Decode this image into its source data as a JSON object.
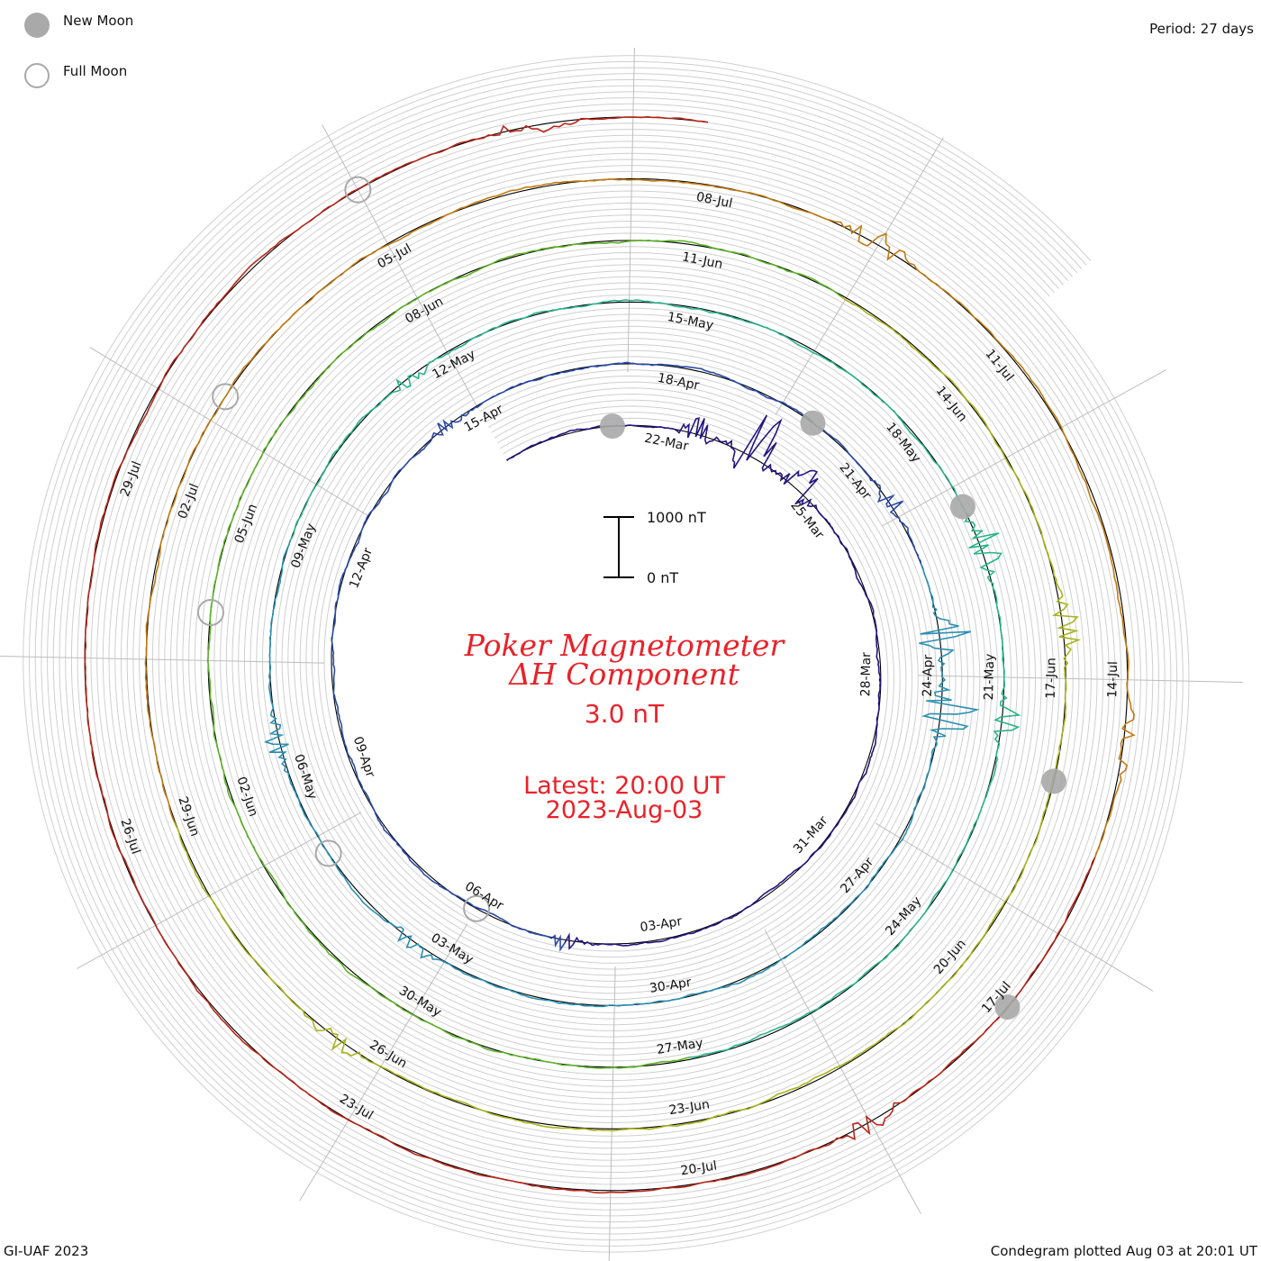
{
  "legend": {
    "new_moon": {
      "label": "New Moon",
      "color": "#a9a9a9"
    },
    "full_moon": {
      "label": "Full Moon",
      "color": "#a9a9a9"
    }
  },
  "period_label": "Period: 27 days",
  "footer_left": "GI-UAF 2023",
  "footer_right": "Condegram plotted Aug 03 at 20:01 UT",
  "title": {
    "line1": "Poker Magnetometer",
    "line2": "ΔH Component",
    "value": "3.0 nT",
    "latest": "Latest: 20:00 UT",
    "date": "2023-Aug-03"
  },
  "scale_bar": {
    "top_label": "1000 nT",
    "bottom_label": "0 nT"
  },
  "chart_data": {
    "type": "condegram",
    "period_days": 27,
    "start_date": "2023-03-19",
    "end_date": "2023-08-03",
    "latest": "2023-08-03 20:00 UT",
    "component": "ΔH",
    "quiet_level_nT": 3.0,
    "scale_nT": [
      0,
      1000
    ],
    "date_labels": [
      "22-Mar",
      "25-Mar",
      "28-Mar",
      "31-Mar",
      "03-Apr",
      "06-Apr",
      "09-Apr",
      "12-Apr",
      "15-Apr",
      "18-Apr",
      "21-Apr",
      "24-Apr",
      "27-Apr",
      "30-Apr",
      "03-May",
      "06-May",
      "09-May",
      "12-May",
      "15-May",
      "18-May",
      "21-May",
      "24-May",
      "27-May",
      "30-May",
      "02-Jun",
      "05-Jun",
      "08-Jun",
      "11-Jun",
      "14-Jun",
      "17-Jun",
      "20-Jun",
      "23-Jun",
      "26-Jun",
      "29-Jun",
      "02-Jul",
      "05-Jul",
      "08-Jul",
      "11-Jul",
      "14-Jul",
      "17-Jul",
      "20-Jul",
      "23-Jul",
      "26-Jul",
      "29-Jul"
    ],
    "disturbance_days_nT": [
      {
        "date": "2023-03-22",
        "value": 250
      },
      {
        "date": "2023-03-23",
        "value": 700
      },
      {
        "date": "2023-03-24",
        "value": 350
      },
      {
        "date": "2023-04-04",
        "value": 160
      },
      {
        "date": "2023-04-14",
        "value": 120
      },
      {
        "date": "2023-04-21",
        "value": 180
      },
      {
        "date": "2023-04-23",
        "value": 450
      },
      {
        "date": "2023-04-24",
        "value": 520
      },
      {
        "date": "2023-05-03",
        "value": 180
      },
      {
        "date": "2023-05-06",
        "value": 200
      },
      {
        "date": "2023-05-11",
        "value": 160
      },
      {
        "date": "2023-05-19",
        "value": 320
      },
      {
        "date": "2023-05-21",
        "value": 220
      },
      {
        "date": "2023-06-16",
        "value": 280
      },
      {
        "date": "2023-06-26",
        "value": 140
      },
      {
        "date": "2023-07-09",
        "value": 220
      },
      {
        "date": "2023-07-14",
        "value": 150
      },
      {
        "date": "2023-07-18",
        "value": 180
      },
      {
        "date": "2023-08-02",
        "value": 200
      }
    ],
    "new_moons": [
      "2023-03-21",
      "2023-04-20",
      "2023-05-19",
      "2023-06-18",
      "2023-07-17"
    ],
    "full_moons": [
      "2023-04-06",
      "2023-05-05",
      "2023-06-04",
      "2023-07-03",
      "2023-08-01"
    ]
  }
}
